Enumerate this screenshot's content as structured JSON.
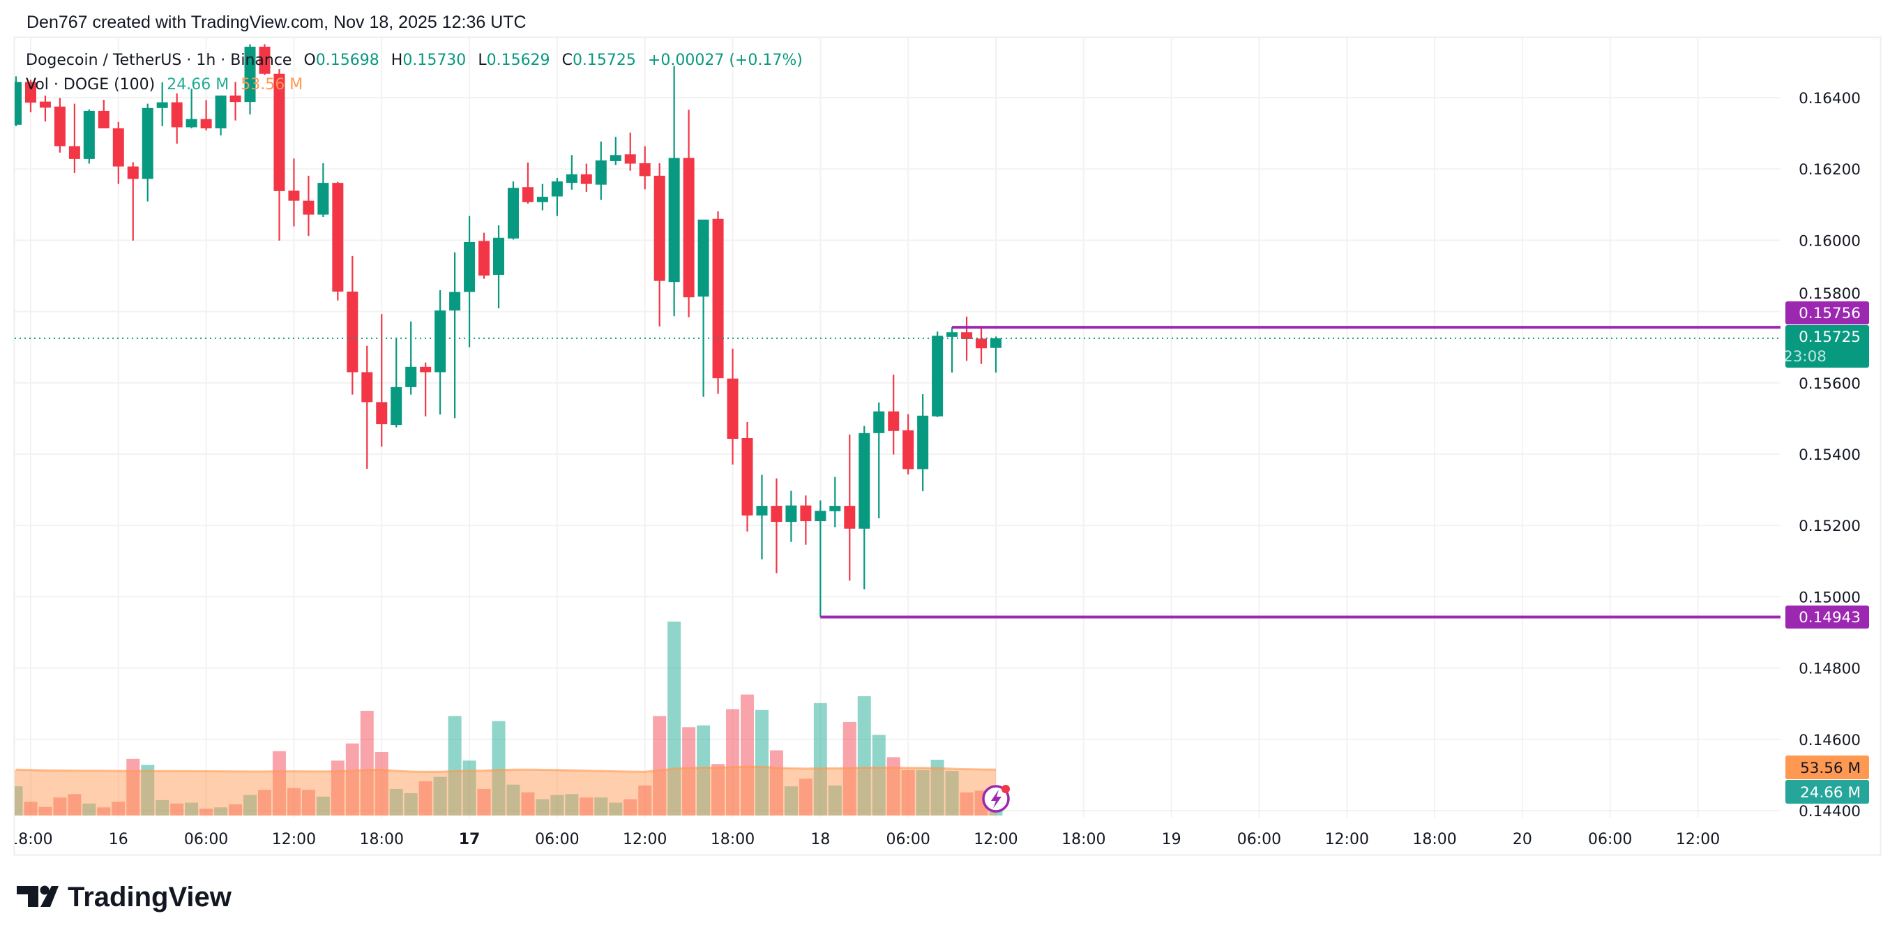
{
  "attribution": "Den767 created with TradingView.com, Nov 18, 2025 12:36 UTC",
  "legend": {
    "symbol": "Dogecoin / TetherUS · 1h · Binance",
    "open_label": "O",
    "open": "0.15698",
    "high_label": "H",
    "high": "0.15730",
    "low_label": "L",
    "low": "0.15629",
    "close_label": "C",
    "close": "0.15725",
    "change": "+0.00027 (+0.17%)",
    "volume_title": "Vol · DOGE (100)",
    "volume_value": "24.66 M",
    "volume_ma_value": "53.56 M"
  },
  "price_labels": {
    "line_high": "0.15756",
    "current_price": "0.15725",
    "countdown": "23:08",
    "line_low": "0.14943",
    "volume_ma": "53.56 M",
    "volume": "24.66 M"
  },
  "logo": "TradingView",
  "colors": {
    "up": "#089981",
    "down": "#F23645",
    "volume_up": "rgba(34,171,148,0.5)",
    "volume_down": "rgba(242,54,69,0.45)",
    "volume_ma_fill": "rgba(255,152,80,0.47)",
    "volume_ma_line": "rgba(255,152,80,0.6)",
    "drawing_lines": "#9C27B0",
    "volume_ma_label": "#FF9850",
    "volume_label": "#26A69A",
    "grid": "#F2F2F2",
    "text": "#131722"
  },
  "chart_data": {
    "type": "candlestick",
    "interval": "1h",
    "ylim": [
      0.144,
      0.164
    ],
    "y_ticks": [
      "0.16400",
      "0.16200",
      "0.16000",
      "0.15800",
      "0.15600",
      "0.15400",
      "0.15200",
      "0.15000",
      "0.14800",
      "0.14600",
      "0.14400"
    ],
    "x_ticks": [
      {
        "time": "2025-11-15 18:00",
        "label": "18:00"
      },
      {
        "time": "2025-11-16 00:00",
        "label": "16"
      },
      {
        "time": "2025-11-16 06:00",
        "label": "06:00"
      },
      {
        "time": "2025-11-16 12:00",
        "label": "12:00"
      },
      {
        "time": "2025-11-16 18:00",
        "label": "18:00"
      },
      {
        "time": "2025-11-17 00:00",
        "label": "17",
        "bold": true
      },
      {
        "time": "2025-11-17 06:00",
        "label": "06:00"
      },
      {
        "time": "2025-11-17 12:00",
        "label": "12:00"
      },
      {
        "time": "2025-11-17 18:00",
        "label": "18:00"
      },
      {
        "time": "2025-11-18 00:00",
        "label": "18"
      },
      {
        "time": "2025-11-18 06:00",
        "label": "06:00"
      },
      {
        "time": "2025-11-18 12:00",
        "label": "12:00"
      },
      {
        "time": "2025-11-18 18:00",
        "label": "18:00"
      },
      {
        "time": "2025-11-19 00:00",
        "label": "19"
      },
      {
        "time": "2025-11-19 06:00",
        "label": "06:00"
      },
      {
        "time": "2025-11-19 12:00",
        "label": "12:00"
      },
      {
        "time": "2025-11-19 18:00",
        "label": "18:00"
      },
      {
        "time": "2025-11-20 00:00",
        "label": "20"
      },
      {
        "time": "2025-11-20 06:00",
        "label": "06:00"
      },
      {
        "time": "2025-11-20 12:00",
        "label": "12:00"
      }
    ],
    "horizontal_lines": [
      {
        "price": 0.15756,
        "from": "2025-11-18 09:00"
      },
      {
        "price": 0.14943,
        "from": "2025-11-18 00:00"
      }
    ],
    "current_price": 0.15725,
    "volume_unit": "M",
    "candles_columns": [
      "time",
      "open",
      "high",
      "low",
      "close",
      "volume",
      "volume_ma"
    ],
    "candles": [
      [
        "2025-11-15 17:00",
        0.16324,
        0.1646,
        0.1632,
        0.16444,
        34,
        53.5
      ],
      [
        "2025-11-15 18:00",
        0.16444,
        0.1645,
        0.16359,
        0.16386,
        16,
        53.0
      ],
      [
        "2025-11-15 19:00",
        0.16389,
        0.16406,
        0.16333,
        0.16372,
        10,
        52.6
      ],
      [
        "2025-11-15 20:00",
        0.16375,
        0.16399,
        0.16246,
        0.16264,
        21,
        52.4
      ],
      [
        "2025-11-15 21:00",
        0.16264,
        0.16383,
        0.16189,
        0.16228,
        25,
        52.3
      ],
      [
        "2025-11-15 22:00",
        0.16228,
        0.16367,
        0.16215,
        0.16363,
        14,
        52.2
      ],
      [
        "2025-11-15 23:00",
        0.16363,
        0.16394,
        0.16314,
        0.16314,
        9.5,
        52.2
      ],
      [
        "2025-11-16 00:00",
        0.16314,
        0.16332,
        0.16158,
        0.16207,
        16,
        52.0
      ],
      [
        "2025-11-16 01:00",
        0.16207,
        0.16219,
        0.15999,
        0.16172,
        66,
        51.9
      ],
      [
        "2025-11-16 02:00",
        0.16172,
        0.16383,
        0.16109,
        0.16371,
        59,
        51.9
      ],
      [
        "2025-11-16 03:00",
        0.16371,
        0.16443,
        0.1632,
        0.16387,
        18,
        51.8
      ],
      [
        "2025-11-16 04:00",
        0.16387,
        0.16412,
        0.16271,
        0.16317,
        14,
        51.8
      ],
      [
        "2025-11-16 05:00",
        0.16317,
        0.16425,
        0.16314,
        0.1634,
        15,
        51.7
      ],
      [
        "2025-11-16 06:00",
        0.1634,
        0.16393,
        0.16308,
        0.16314,
        8,
        51.6
      ],
      [
        "2025-11-16 07:00",
        0.16314,
        0.16406,
        0.16294,
        0.16406,
        9.5,
        51.5
      ],
      [
        "2025-11-16 08:00",
        0.16406,
        0.16444,
        0.16336,
        0.16388,
        13,
        51.4
      ],
      [
        "2025-11-16 09:00",
        0.16388,
        0.1655,
        0.16353,
        0.16543,
        24,
        51.3
      ],
      [
        "2025-11-16 10:00",
        0.16543,
        0.1655,
        0.16464,
        0.16467,
        30,
        51.3
      ],
      [
        "2025-11-16 11:00",
        0.16467,
        0.1648,
        0.15999,
        0.16138,
        75,
        51.5
      ],
      [
        "2025-11-16 12:00",
        0.16139,
        0.16229,
        0.16039,
        0.16111,
        32,
        51.5
      ],
      [
        "2025-11-16 13:00",
        0.16111,
        0.16181,
        0.16012,
        0.16072,
        30,
        51.4
      ],
      [
        "2025-11-16 14:00",
        0.16072,
        0.16216,
        0.16065,
        0.16161,
        22,
        51.3
      ],
      [
        "2025-11-16 15:00",
        0.16161,
        0.16164,
        0.15831,
        0.15856,
        64,
        51.5
      ],
      [
        "2025-11-16 16:00",
        0.15856,
        0.15956,
        0.15567,
        0.1563,
        84,
        52.0
      ],
      [
        "2025-11-16 17:00",
        0.1563,
        0.15704,
        0.15359,
        0.15546,
        122,
        53.2
      ],
      [
        "2025-11-16 18:00",
        0.15546,
        0.15793,
        0.15421,
        0.15484,
        74,
        53.2
      ],
      [
        "2025-11-16 19:00",
        0.15482,
        0.15726,
        0.15475,
        0.15588,
        31,
        52.0
      ],
      [
        "2025-11-16 20:00",
        0.15588,
        0.15772,
        0.15567,
        0.15645,
        26,
        51.2
      ],
      [
        "2025-11-16 21:00",
        0.15645,
        0.15657,
        0.15506,
        0.1563,
        40,
        51.0
      ],
      [
        "2025-11-16 22:00",
        0.1563,
        0.1586,
        0.15511,
        0.15803,
        45,
        51.0
      ],
      [
        "2025-11-16 23:00",
        0.15803,
        0.15966,
        0.15501,
        0.15855,
        116,
        51.6
      ],
      [
        "2025-11-17 00:00",
        0.15855,
        0.16068,
        0.157,
        0.15995,
        64,
        52.0
      ],
      [
        "2025-11-17 01:00",
        0.15998,
        0.16021,
        0.15892,
        0.15901,
        31,
        52.3
      ],
      [
        "2025-11-17 02:00",
        0.15903,
        0.16042,
        0.15809,
        0.16007,
        110,
        53.0
      ],
      [
        "2025-11-17 03:00",
        0.16005,
        0.16165,
        0.16002,
        0.16147,
        36,
        53.5
      ],
      [
        "2025-11-17 04:00",
        0.16149,
        0.16218,
        0.16103,
        0.16107,
        27,
        53.5
      ],
      [
        "2025-11-17 05:00",
        0.16107,
        0.16158,
        0.16084,
        0.16122,
        19,
        53.3
      ],
      [
        "2025-11-17 06:00",
        0.16123,
        0.16175,
        0.16068,
        0.16165,
        24,
        53.0
      ],
      [
        "2025-11-17 07:00",
        0.16161,
        0.16239,
        0.16142,
        0.16185,
        25,
        52.6
      ],
      [
        "2025-11-17 08:00",
        0.16185,
        0.16215,
        0.16136,
        0.16158,
        21,
        52.2
      ],
      [
        "2025-11-17 09:00",
        0.16156,
        0.16277,
        0.16113,
        0.16224,
        21,
        51.9
      ],
      [
        "2025-11-17 10:00",
        0.16222,
        0.1629,
        0.16211,
        0.16239,
        15,
        51.5
      ],
      [
        "2025-11-17 11:00",
        0.16241,
        0.16302,
        0.16195,
        0.16215,
        19,
        51.2
      ],
      [
        "2025-11-17 12:00",
        0.16216,
        0.16264,
        0.16143,
        0.1618,
        35,
        51.0
      ],
      [
        "2025-11-17 13:00",
        0.16181,
        0.16216,
        0.15758,
        0.15886,
        116,
        52.5
      ],
      [
        "2025-11-17 14:00",
        0.15883,
        0.16489,
        0.15787,
        0.16231,
        226,
        54.5
      ],
      [
        "2025-11-17 15:00",
        0.16231,
        0.16366,
        0.15784,
        0.1584,
        103,
        55.5
      ],
      [
        "2025-11-17 16:00",
        0.15842,
        0.15976,
        0.15561,
        0.16058,
        105,
        55.8
      ],
      [
        "2025-11-17 17:00",
        0.1606,
        0.16081,
        0.15569,
        0.15613,
        60,
        55.8
      ],
      [
        "2025-11-17 18:00",
        0.15612,
        0.15696,
        0.15371,
        0.15443,
        124,
        56.3
      ],
      [
        "2025-11-17 19:00",
        0.15445,
        0.1549,
        0.15183,
        0.15228,
        141,
        57.0
      ],
      [
        "2025-11-17 20:00",
        0.15228,
        0.15342,
        0.15105,
        0.15255,
        123,
        56.6
      ],
      [
        "2025-11-17 21:00",
        0.15255,
        0.15332,
        0.15066,
        0.1521,
        76,
        55.6
      ],
      [
        "2025-11-17 22:00",
        0.1521,
        0.15297,
        0.15154,
        0.15256,
        34,
        55.0
      ],
      [
        "2025-11-17 23:00",
        0.15256,
        0.15284,
        0.15146,
        0.15212,
        43,
        54.6
      ],
      [
        "2025-11-18 00:00",
        0.15212,
        0.1527,
        0.14943,
        0.15241,
        131,
        55.0
      ],
      [
        "2025-11-18 01:00",
        0.1524,
        0.15336,
        0.15195,
        0.15255,
        35,
        55.0
      ],
      [
        "2025-11-18 02:00",
        0.15255,
        0.15455,
        0.15045,
        0.15191,
        109,
        55.4
      ],
      [
        "2025-11-18 03:00",
        0.15191,
        0.15479,
        0.15021,
        0.15459,
        139,
        55.8
      ],
      [
        "2025-11-18 04:00",
        0.15459,
        0.15545,
        0.1522,
        0.1552,
        94,
        55.8
      ],
      [
        "2025-11-18 05:00",
        0.1552,
        0.15623,
        0.15399,
        0.15465,
        68,
        55.7
      ],
      [
        "2025-11-18 06:00",
        0.15467,
        0.15512,
        0.15343,
        0.15358,
        53,
        55.6
      ],
      [
        "2025-11-18 07:00",
        0.15358,
        0.15568,
        0.15296,
        0.15508,
        53,
        55.5
      ],
      [
        "2025-11-18 08:00",
        0.15506,
        0.15744,
        0.15504,
        0.15732,
        65,
        55.2
      ],
      [
        "2025-11-18 09:00",
        0.15729,
        0.15756,
        0.15629,
        0.15742,
        52,
        54.5
      ],
      [
        "2025-11-18 10:00",
        0.15742,
        0.15786,
        0.15662,
        0.15723,
        27,
        54.0
      ],
      [
        "2025-11-18 11:00",
        0.15724,
        0.15756,
        0.15653,
        0.15697,
        29,
        53.7
      ],
      [
        "2025-11-18 12:00",
        0.15698,
        0.1573,
        0.15629,
        0.15725,
        24.66,
        53.56
      ]
    ]
  }
}
